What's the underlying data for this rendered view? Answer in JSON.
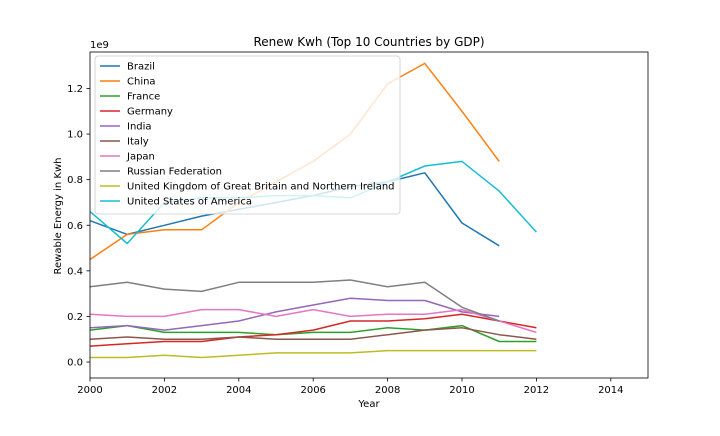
{
  "chart_data": {
    "type": "line",
    "title": "Renew Kwh (Top 10 Countries by GDP)",
    "xlabel": "Year",
    "ylabel": "Rewable Energy in Kwh",
    "y_offset_label": "1e9",
    "xlim": [
      2000,
      2015
    ],
    "ylim": [
      -0.07,
      1.36
    ],
    "x_ticks": [
      2000,
      2002,
      2004,
      2006,
      2008,
      2010,
      2012,
      2014
    ],
    "x_tick_labels": [
      "2000",
      "2002",
      "2004",
      "2006",
      "2008",
      "2010",
      "2012",
      "2014"
    ],
    "y_ticks": [
      0.0,
      0.2,
      0.4,
      0.6,
      0.8,
      1.0,
      1.2
    ],
    "y_tick_labels": [
      "0.0",
      "0.2",
      "0.4",
      "0.6",
      "0.8",
      "1.0",
      "1.2"
    ],
    "grid": false,
    "legend_position": "top-left",
    "series": [
      {
        "name": "Brazil",
        "color": "#1f77b4",
        "x": [
          2000,
          2001,
          2002,
          2003,
          2004,
          2005,
          2006,
          2007,
          2008,
          2009,
          2010,
          2011
        ],
        "y": [
          0.62,
          0.56,
          0.6,
          0.64,
          0.67,
          0.7,
          0.73,
          0.77,
          0.79,
          0.83,
          0.61,
          0.51
        ]
      },
      {
        "name": "China",
        "color": "#ff7f0e",
        "x": [
          2000,
          2001,
          2002,
          2003,
          2004,
          2005,
          2006,
          2007,
          2008,
          2009,
          2010,
          2011
        ],
        "y": [
          0.45,
          0.56,
          0.58,
          0.58,
          0.7,
          0.79,
          0.88,
          1.0,
          1.22,
          1.31,
          1.1,
          0.88
        ]
      },
      {
        "name": "France",
        "color": "#2ca02c",
        "x": [
          2000,
          2001,
          2002,
          2003,
          2004,
          2005,
          2006,
          2007,
          2008,
          2009,
          2010,
          2011,
          2012
        ],
        "y": [
          0.14,
          0.16,
          0.13,
          0.13,
          0.13,
          0.12,
          0.13,
          0.13,
          0.15,
          0.14,
          0.16,
          0.09,
          0.09
        ]
      },
      {
        "name": "Germany",
        "color": "#d62728",
        "x": [
          2000,
          2001,
          2002,
          2003,
          2004,
          2005,
          2006,
          2007,
          2008,
          2009,
          2010,
          2011,
          2012
        ],
        "y": [
          0.07,
          0.08,
          0.09,
          0.09,
          0.11,
          0.12,
          0.14,
          0.18,
          0.18,
          0.19,
          0.21,
          0.18,
          0.15
        ]
      },
      {
        "name": "India",
        "color": "#9467bd",
        "x": [
          2000,
          2001,
          2002,
          2003,
          2004,
          2005,
          2006,
          2007,
          2008,
          2009,
          2010,
          2011
        ],
        "y": [
          0.15,
          0.16,
          0.14,
          0.16,
          0.18,
          0.22,
          0.25,
          0.28,
          0.27,
          0.27,
          0.22,
          0.2
        ]
      },
      {
        "name": "Italy",
        "color": "#8c564b",
        "x": [
          2000,
          2001,
          2002,
          2003,
          2004,
          2005,
          2006,
          2007,
          2008,
          2009,
          2010,
          2011,
          2012
        ],
        "y": [
          0.1,
          0.11,
          0.1,
          0.1,
          0.11,
          0.1,
          0.1,
          0.1,
          0.12,
          0.14,
          0.15,
          0.12,
          0.1
        ]
      },
      {
        "name": "Japan",
        "color": "#e377c2",
        "x": [
          2000,
          2001,
          2002,
          2003,
          2004,
          2005,
          2006,
          2007,
          2008,
          2009,
          2010,
          2011,
          2012
        ],
        "y": [
          0.21,
          0.2,
          0.2,
          0.23,
          0.23,
          0.2,
          0.23,
          0.2,
          0.21,
          0.21,
          0.23,
          0.18,
          0.13
        ]
      },
      {
        "name": "Russian Federation",
        "color": "#7f7f7f",
        "x": [
          2000,
          2001,
          2002,
          2003,
          2004,
          2005,
          2006,
          2007,
          2008,
          2009,
          2010,
          2011
        ],
        "y": [
          0.33,
          0.35,
          0.32,
          0.31,
          0.35,
          0.35,
          0.35,
          0.36,
          0.33,
          0.35,
          0.24,
          0.18
        ]
      },
      {
        "name": "United Kingdom of Great Britain and Northern Ireland",
        "color": "#bcbd22",
        "x": [
          2000,
          2001,
          2002,
          2003,
          2004,
          2005,
          2006,
          2007,
          2008,
          2009,
          2010,
          2011,
          2012
        ],
        "y": [
          0.02,
          0.02,
          0.03,
          0.02,
          0.03,
          0.04,
          0.04,
          0.04,
          0.05,
          0.05,
          0.05,
          0.05,
          0.05
        ]
      },
      {
        "name": "United States of America",
        "color": "#17becf",
        "x": [
          2000,
          2001,
          2002,
          2003,
          2004,
          2005,
          2006,
          2007,
          2008,
          2009,
          2010,
          2011,
          2012
        ],
        "y": [
          0.66,
          0.52,
          0.7,
          0.72,
          0.72,
          0.73,
          0.73,
          0.72,
          0.79,
          0.86,
          0.88,
          0.75,
          0.57
        ]
      }
    ]
  }
}
